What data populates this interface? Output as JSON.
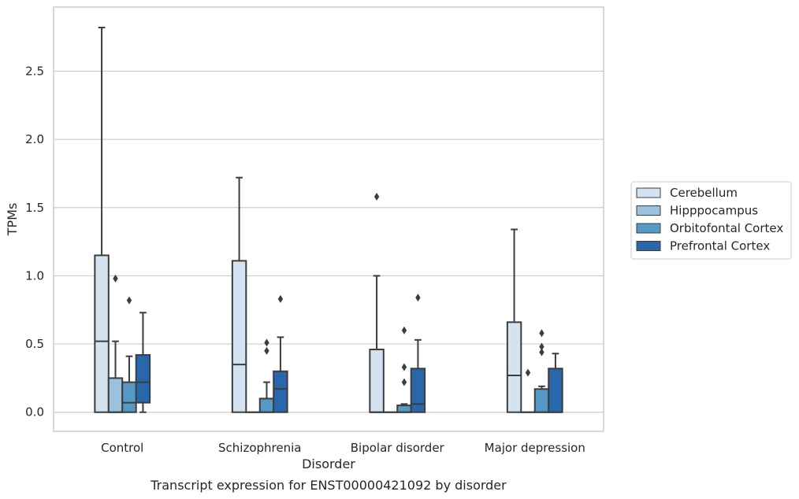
{
  "chart_data": {
    "type": "box",
    "caption": "Transcript expression for ENST00000421092 by disorder",
    "xlabel": "Disorder",
    "ylabel": "TPMs",
    "ylim": [
      -0.14,
      2.97
    ],
    "yticks": [
      0.0,
      0.5,
      1.0,
      1.5,
      2.0,
      2.5
    ],
    "ytick_labels": [
      "0.0",
      "0.5",
      "1.0",
      "1.5",
      "2.0",
      "2.5"
    ],
    "grid": "horizontal",
    "legend_position": "right",
    "categories": [
      "Control",
      "Schizophrenia",
      "Bipolar disorder",
      "Major depression"
    ],
    "series": [
      {
        "name": "Cerebellum",
        "color": "#d4e3f1",
        "boxes": [
          {
            "min": 0.0,
            "q1": 0.0,
            "median": 0.52,
            "q3": 1.15,
            "max": 2.82,
            "outliers": []
          },
          {
            "min": 0.0,
            "q1": 0.0,
            "median": 0.35,
            "q3": 1.11,
            "max": 1.72,
            "outliers": []
          },
          {
            "min": 0.0,
            "q1": 0.0,
            "median": 0.0,
            "q3": 0.46,
            "max": 1.0,
            "outliers": [
              1.58
            ]
          },
          {
            "min": 0.0,
            "q1": 0.0,
            "median": 0.27,
            "q3": 0.66,
            "max": 1.34,
            "outliers": []
          }
        ]
      },
      {
        "name": "Hipppocampus",
        "color": "#9bc2dd",
        "boxes": [
          {
            "min": 0.0,
            "q1": 0.0,
            "median": 0.0,
            "q3": 0.25,
            "max": 0.52,
            "outliers": [
              0.98
            ]
          },
          {
            "min": 0.0,
            "q1": 0.0,
            "median": 0.0,
            "q3": 0.0,
            "max": 0.0,
            "outliers": []
          },
          {
            "min": 0.0,
            "q1": 0.0,
            "median": 0.0,
            "q3": 0.0,
            "max": 0.0,
            "outliers": []
          },
          {
            "min": 0.0,
            "q1": 0.0,
            "median": 0.0,
            "q3": 0.0,
            "max": 0.0,
            "outliers": [
              0.29
            ]
          }
        ]
      },
      {
        "name": "Orbitofontal Cortex",
        "color": "#5799c6",
        "boxes": [
          {
            "min": 0.0,
            "q1": 0.0,
            "median": 0.07,
            "q3": 0.22,
            "max": 0.41,
            "outliers": [
              0.82
            ]
          },
          {
            "min": 0.0,
            "q1": 0.0,
            "median": 0.0,
            "q3": 0.1,
            "max": 0.22,
            "outliers": [
              0.45,
              0.51
            ]
          },
          {
            "min": 0.0,
            "q1": 0.0,
            "median": 0.0,
            "q3": 0.05,
            "max": 0.06,
            "outliers": [
              0.22,
              0.33,
              0.6
            ]
          },
          {
            "min": 0.0,
            "q1": 0.0,
            "median": 0.0,
            "q3": 0.17,
            "max": 0.19,
            "outliers": [
              0.44,
              0.48,
              0.58
            ]
          }
        ]
      },
      {
        "name": "Prefrontal Cortex",
        "color": "#2867ac",
        "boxes": [
          {
            "min": 0.0,
            "q1": 0.07,
            "median": 0.22,
            "q3": 0.42,
            "max": 0.73,
            "outliers": []
          },
          {
            "min": 0.0,
            "q1": 0.0,
            "median": 0.17,
            "q3": 0.3,
            "max": 0.55,
            "outliers": [
              0.83
            ]
          },
          {
            "min": 0.0,
            "q1": 0.0,
            "median": 0.06,
            "q3": 0.32,
            "max": 0.53,
            "outliers": [
              0.84
            ]
          },
          {
            "min": 0.0,
            "q1": 0.0,
            "median": 0.0,
            "q3": 0.32,
            "max": 0.43,
            "outliers": []
          }
        ]
      }
    ]
  }
}
